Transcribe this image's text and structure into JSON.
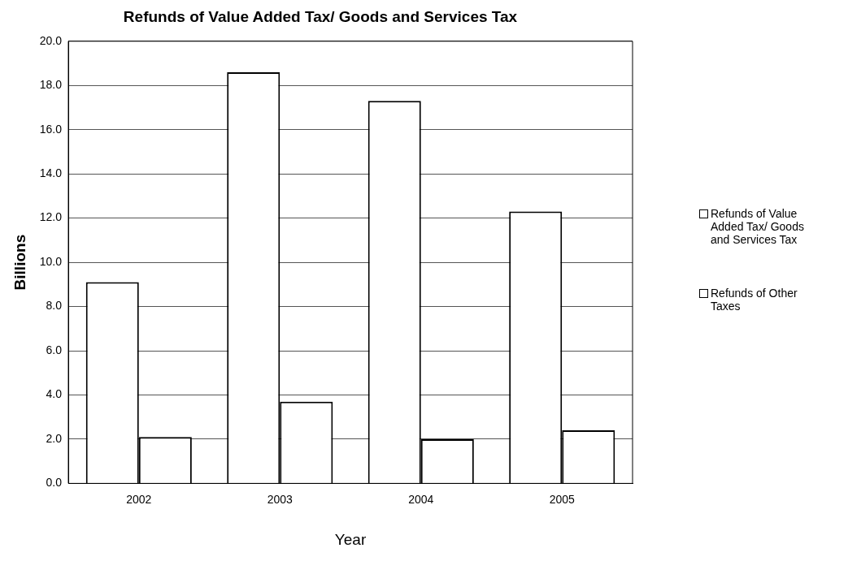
{
  "chart_data": {
    "type": "bar",
    "title": "Refunds of Value Added Tax/ Goods and Services Tax",
    "xlabel": "Year",
    "ylabel": "Billions",
    "categories": [
      "2002",
      "2003",
      "2004",
      "2005"
    ],
    "series": [
      {
        "name": "Refunds of Value Added Tax/ Goods and Services Tax",
        "color": "#ffffff",
        "values": [
          9.1,
          18.6,
          17.3,
          12.3
        ]
      },
      {
        "name": "Refunds of  Other Taxes",
        "color": "#ffffff",
        "values": [
          2.1,
          3.7,
          2.0,
          2.4
        ]
      }
    ],
    "ylim": [
      0,
      20
    ],
    "yticks": [
      {
        "value": 0,
        "label": "0.0"
      },
      {
        "value": 2,
        "label": "2.0"
      },
      {
        "value": 4,
        "label": "4.0"
      },
      {
        "value": 6,
        "label": "6.0"
      },
      {
        "value": 8,
        "label": "8.0"
      },
      {
        "value": 10,
        "label": "10.0"
      },
      {
        "value": 12,
        "label": "12.0"
      },
      {
        "value": 14,
        "label": "14.0"
      },
      {
        "value": 16,
        "label": "16.0"
      },
      {
        "value": 18,
        "label": "18.0"
      },
      {
        "value": 20,
        "label": "20.0"
      }
    ],
    "grid": "y",
    "legend": "right"
  }
}
